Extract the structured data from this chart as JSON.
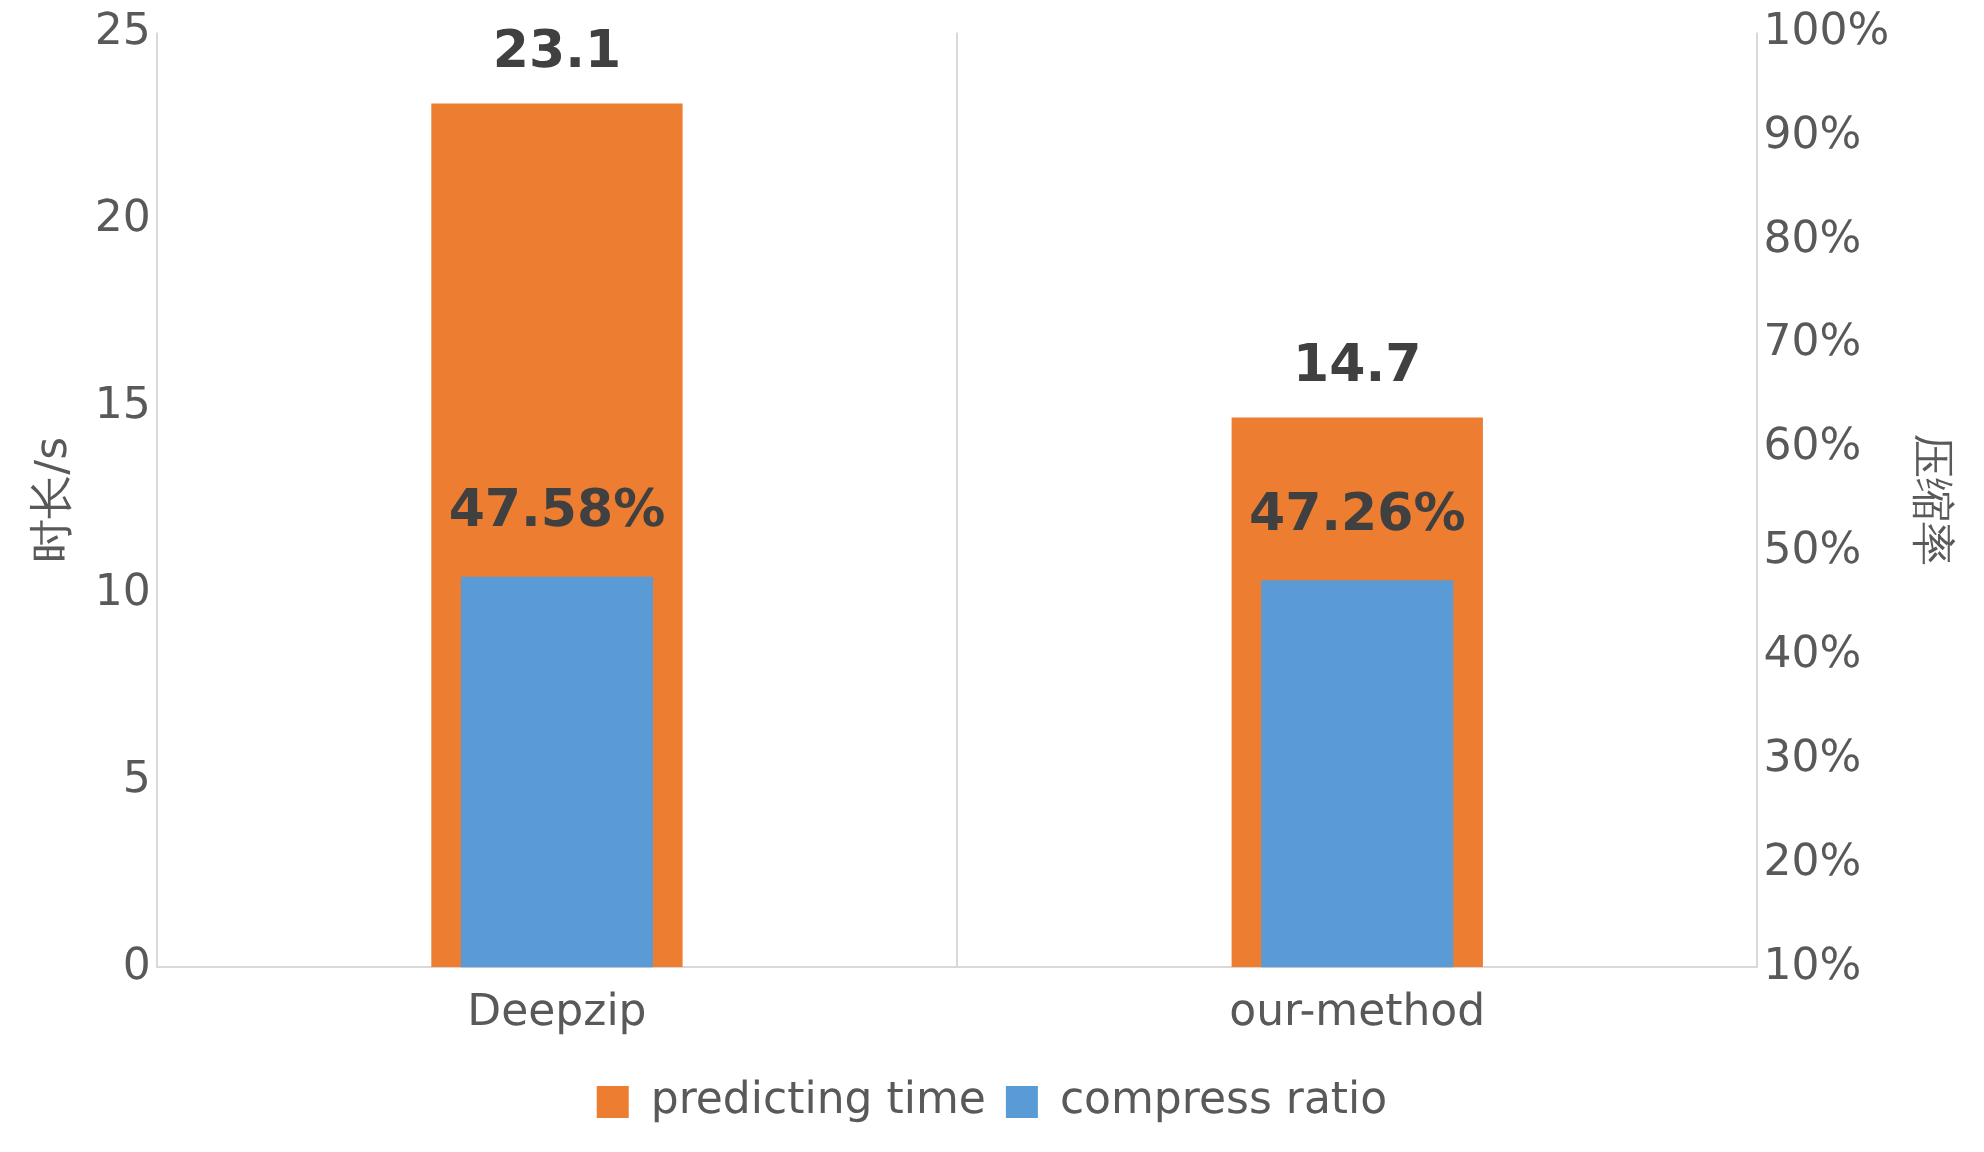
{
  "chart_data": {
    "type": "bar",
    "categories": [
      "Deepzip",
      "our-method"
    ],
    "ylabel": "时长/s",
    "y2label": "压缩率",
    "series": [
      {
        "name": "predicting time",
        "color": "#ed7d31",
        "values": [
          23.1,
          14.7
        ],
        "value_labels": [
          "23.1",
          "14.7"
        ]
      },
      {
        "name": "compress ratio",
        "color": "#5b9bd5",
        "values": [
          47.58,
          47.26
        ],
        "axis": "y2",
        "value_labels": [
          "47.58%",
          "47.26%"
        ]
      }
    ],
    "ylim": [
      0,
      25
    ],
    "yticks": [
      0,
      5,
      10,
      15,
      20,
      25
    ],
    "y2lim": [
      10,
      100
    ],
    "y2ticks": [
      {
        "value": 10,
        "label": "10%"
      },
      {
        "value": 20,
        "label": "20%"
      },
      {
        "value": 30,
        "label": "30%"
      },
      {
        "value": 40,
        "label": "40%"
      },
      {
        "value": 50,
        "label": "50%"
      },
      {
        "value": 60,
        "label": "60%"
      },
      {
        "value": 70,
        "label": "70%"
      },
      {
        "value": 80,
        "label": "80%"
      },
      {
        "value": 90,
        "label": "90%"
      },
      {
        "value": 100,
        "label": "100%"
      }
    ],
    "grid": "x",
    "legend": "bottom"
  }
}
